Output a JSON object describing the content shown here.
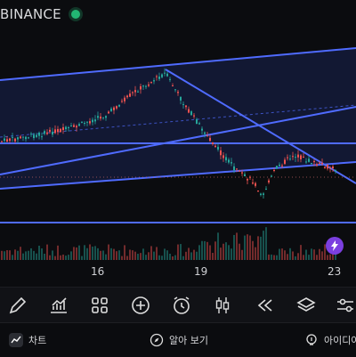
{
  "header": {
    "exchange": "BINANCE"
  },
  "x_axis": {
    "ticks": [
      "16",
      "19",
      "23"
    ]
  },
  "toolbar": {
    "tools": [
      {
        "icon": "pen-icon"
      },
      {
        "icon": "trend-chart-icon"
      },
      {
        "icon": "grid-icon"
      },
      {
        "icon": "plus-circle-icon"
      },
      {
        "icon": "alarm-clock-icon"
      },
      {
        "icon": "candlestick-icon"
      },
      {
        "icon": "rewind-icon"
      },
      {
        "icon": "layers-icon"
      },
      {
        "icon": "settings-sliders-icon"
      }
    ]
  },
  "bottom_nav": {
    "items": [
      {
        "label": "차트",
        "icon": "chart-icon"
      },
      {
        "label": "알아 보기",
        "icon": "compass-icon"
      },
      {
        "label": "아이디어",
        "icon": "idea-bulb-icon"
      }
    ]
  },
  "colors": {
    "accent_line": "#4f6bff",
    "up": "#26a69a",
    "down": "#ef5350",
    "flash_badge": "#7b3fe0"
  }
}
